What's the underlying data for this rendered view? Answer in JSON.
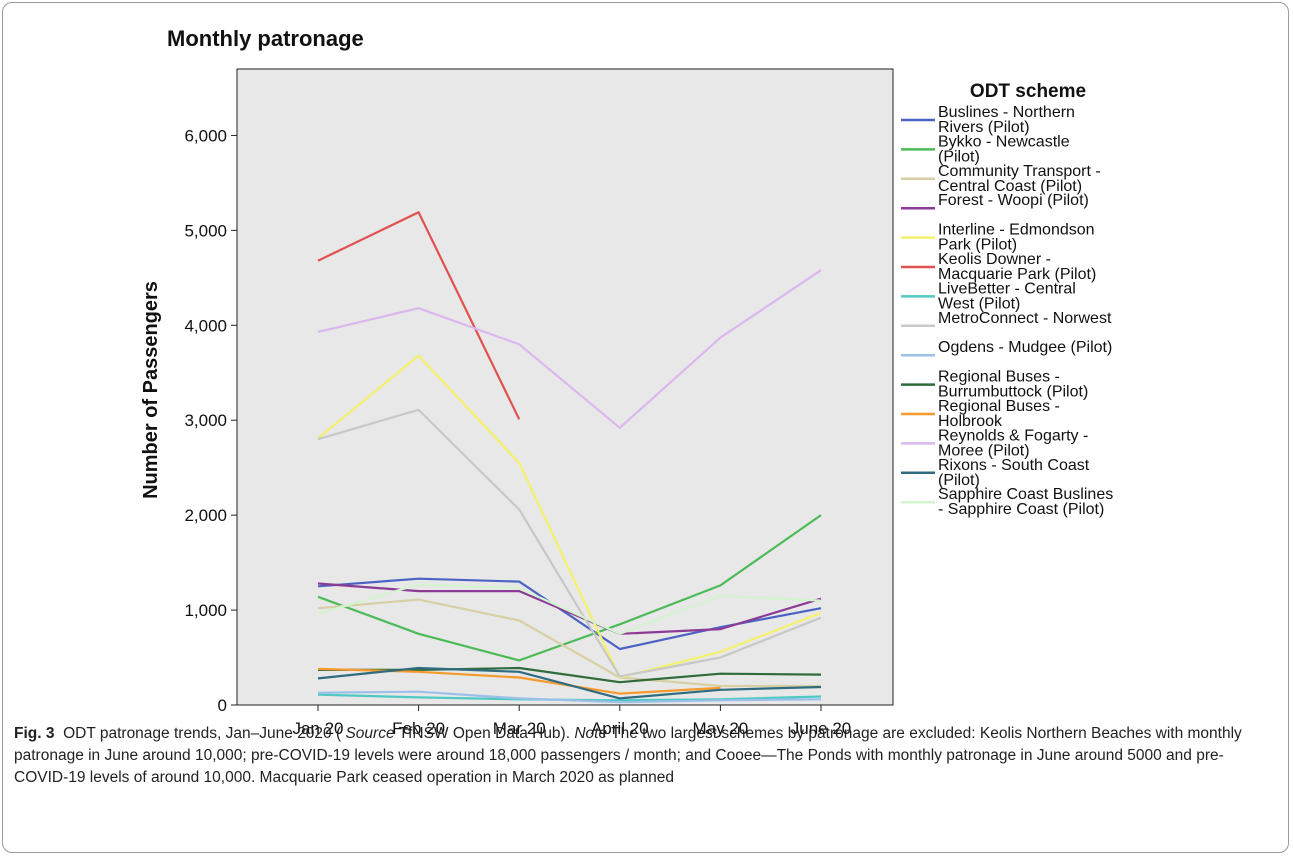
{
  "chart_data": {
    "type": "line",
    "title": "Monthly patronage",
    "ylabel": "Number of Passengers",
    "xlabel": "",
    "categories": [
      "Jan 20",
      "Feb 20",
      "Mar 20",
      "April 20",
      "May 20",
      "June 20"
    ],
    "ylim": [
      0,
      6700
    ],
    "yticks": [
      0,
      1000,
      2000,
      3000,
      4000,
      5000,
      6000
    ],
    "ytick_labels": [
      "0",
      "1,000",
      "2,000",
      "3,000",
      "4,000",
      "5,000",
      "6,000"
    ],
    "grid": false,
    "legend": {
      "title": "ODT scheme",
      "placement": "right"
    },
    "plot_background": "#e8e8e8",
    "series": [
      {
        "name": "Buslines - Northern Rivers (Pilot)",
        "color": "#4a63c4",
        "values": [
          1250,
          1330,
          1300,
          590,
          820,
          1020
        ]
      },
      {
        "name": "Bykko - Newcastle (Pilot)",
        "color": "#4cbb57",
        "values": [
          1140,
          750,
          470,
          850,
          1260,
          2000
        ]
      },
      {
        "name": "Community Transport - Central Coast (Pilot)",
        "color": "#d8cfa4",
        "values": [
          1020,
          1110,
          890,
          290,
          200,
          200
        ]
      },
      {
        "name": "Forest - Woopi (Pilot)",
        "color": "#8b3b96",
        "values": [
          1280,
          1200,
          1200,
          750,
          800,
          1120
        ]
      },
      {
        "name": "Interline - Edmondson Park (Pilot)",
        "color": "#f5f16a",
        "values": [
          2810,
          3680,
          2550,
          290,
          560,
          970
        ]
      },
      {
        "name": "Keolis Downer - Macquarie Park (Pilot)",
        "color": "#e25050",
        "values": [
          4680,
          5190,
          3010,
          null,
          null,
          null
        ]
      },
      {
        "name": "LiveBetter - Central West (Pilot)",
        "color": "#4fc9c2",
        "values": [
          110,
          80,
          60,
          50,
          60,
          90
        ]
      },
      {
        "name": "MetroConnect - Norwest",
        "color": "#c8c8c8",
        "values": [
          2800,
          3110,
          2060,
          300,
          500,
          920
        ]
      },
      {
        "name": "Ogdens - Mudgee (Pilot)",
        "color": "#9cc0ea",
        "values": [
          130,
          140,
          70,
          30,
          50,
          60
        ]
      },
      {
        "name": "Regional Buses - Burrumbuttock (Pilot)",
        "color": "#2f6b3b",
        "values": [
          370,
          370,
          390,
          240,
          330,
          320
        ]
      },
      {
        "name": "Regional Buses - Holbrook",
        "color": "#f59a2c",
        "values": [
          380,
          350,
          290,
          120,
          180,
          null
        ]
      },
      {
        "name": "Reynolds & Fogarty - Moree (Pilot)",
        "color": "#dcb7ee",
        "values": [
          3930,
          4180,
          3800,
          2920,
          3870,
          4580
        ]
      },
      {
        "name": "Rixons - South Coast (Pilot)",
        "color": "#2f6c80",
        "values": [
          280,
          390,
          350,
          70,
          160,
          190
        ]
      },
      {
        "name": "Sapphire Coast Buslines - Sapphire Coast (Pilot)",
        "color": "#d4f3cf",
        "values": [
          960,
          1270,
          1230,
          750,
          1150,
          1100
        ]
      }
    ]
  },
  "caption": {
    "fig_label": "Fig. 3",
    "text_1": "ODT patronage trends, Jan–June 2020 (",
    "source_label": "Source",
    "text_2": "TfNSW Open Data Hub).",
    "note_label": "Note",
    "text_3": "The two largest schemes by patronage are excluded: Keolis Northern Beaches with monthly patronage in June around 10,000; pre-COVID-19 levels were around 18,000 passengers / month; and Cooee—The Ponds with monthly patronage in June around 5000 and pre-COVID-19 levels of around 10,000. Macquarie Park ceased operation in March 2020 as planned"
  }
}
